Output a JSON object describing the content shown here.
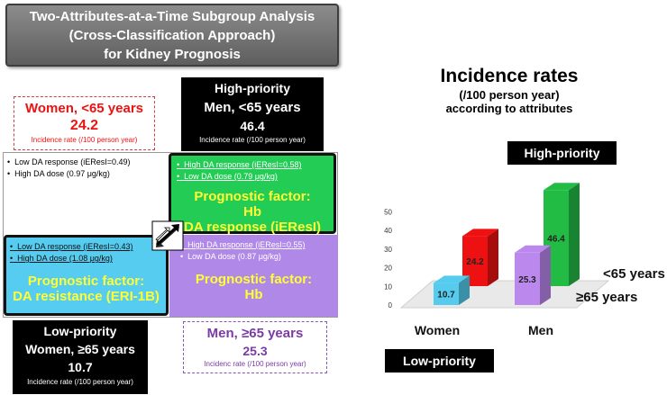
{
  "title": {
    "line1": "Two-Attributes-at-a-Time Subgroup Analysis",
    "line2": "(Cross-Classification Approach)",
    "line3": "for Kidney Prognosis"
  },
  "women_young": {
    "label": "Women, <65 years",
    "value": "24.2",
    "note": "Incidence rate (/100 person year)"
  },
  "men_young": {
    "priority": "High-priority",
    "label": "Men, <65 years",
    "value": "46.4",
    "note": "Incidence rate (/100 person year)"
  },
  "women_old": {
    "priority": "Low-priority",
    "label": "Women, ≥65 years",
    "value": "10.7",
    "note": "Incidence rate (/100 person year)"
  },
  "men_old": {
    "label": "Men, ≥65 years",
    "value": "25.3",
    "note": "Incidenc rate (/100 person year)"
  },
  "quad_tl": {
    "b1": "Low DA response (iEResI=0.49)",
    "b2": "High DA dose (0.97 μg/kg)"
  },
  "quad_tr": {
    "b1": "High DA response (iEResI=0.58)",
    "b2": "Low DA dose (0.79 μg/kg)",
    "pf1": "Prognostic factor:",
    "pf2": "Hb",
    "pf3": "DA response (iEResI)"
  },
  "quad_bl": {
    "b1": "Low DA response (iEResI=0.43)",
    "b2": "High DA dose (1.08 μg/kg)",
    "pf1": "Prognostic factor:",
    "pf2": "DA resistance (ERI-1B)"
  },
  "quad_br": {
    "b1": "High DA response (iEResI=0.55)",
    "b2": "Low DA dose (0.87 μg/kg)",
    "pf1": "Prognostic factor:",
    "pf2": "Hb"
  },
  "bullet_char": "•",
  "right": {
    "heading": "Incidence rates",
    "sub1": "(/100 person year)",
    "sub2": "according to attributes",
    "high_label": "High-priority",
    "low_label": "Low-priority"
  },
  "colors": {
    "women_young": "#ee1111",
    "men_young": "#22bb44",
    "women_old": "#55ccee",
    "men_old": "#bb88ee",
    "tr_border": "#22aa44",
    "tr_fill": "#22cc55",
    "bl_fill": "#55ccf0",
    "br_fill": "#b088e8"
  },
  "chart_data": {
    "type": "bar",
    "categories": [
      "Women",
      "Men"
    ],
    "series": [
      {
        "name": "<65 years",
        "values": [
          24.2,
          46.4
        ]
      },
      {
        "name": "≥65 years",
        "values": [
          10.7,
          25.3
        ]
      }
    ],
    "yticks": [
      0,
      10,
      20,
      30,
      40,
      50
    ],
    "ylim": [
      0,
      50
    ],
    "title": "Incidence rates",
    "ylabel": "",
    "xlabel": "",
    "grid": false,
    "legend": "right"
  }
}
